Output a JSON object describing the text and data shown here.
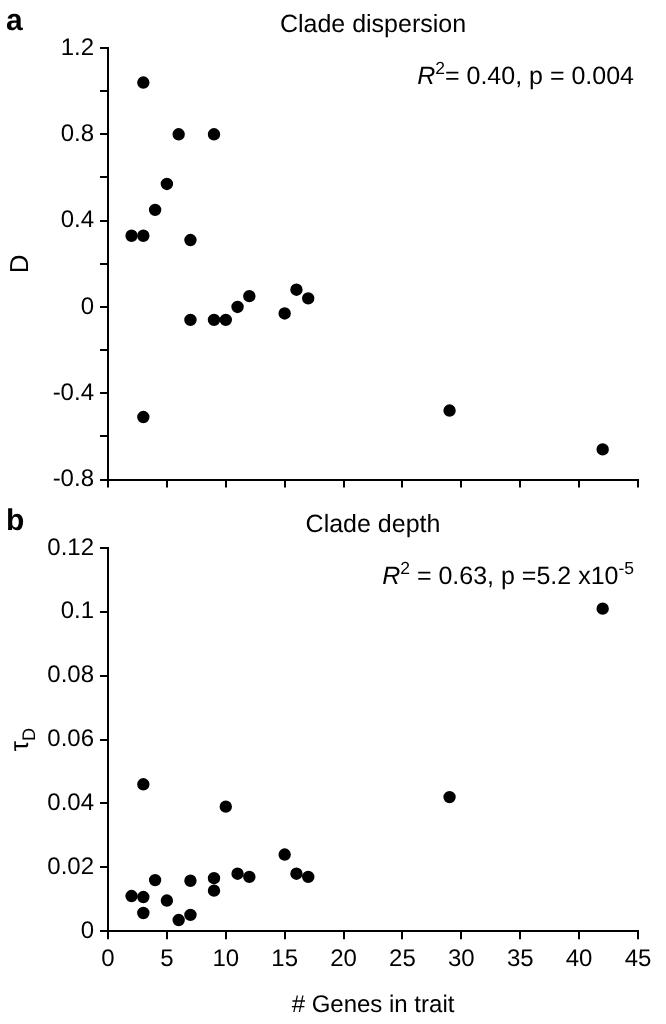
{
  "chart_data": [
    {
      "type": "scatter",
      "title": "Clade dispersion",
      "ylabel": "D",
      "annotations": [
        "a",
        "R$^{2}$= 0.40, p = 0.004"
      ],
      "x": [
        2,
        3,
        3,
        3,
        4,
        5,
        6,
        7,
        7,
        9,
        9,
        10,
        11,
        12,
        15,
        16,
        17,
        29,
        42
      ],
      "series": [
        {
          "color": "#000000",
          "values": [
            0.33,
            1.04,
            0.33,
            -0.51,
            0.45,
            0.57,
            0.8,
            0.31,
            -0.06,
            0.8,
            -0.06,
            -0.06,
            0.0,
            0.05,
            -0.03,
            0.08,
            0.04,
            -0.48,
            -0.66
          ]
        }
      ],
      "xlim": [
        0,
        45
      ],
      "xticks": [
        0,
        5,
        10,
        15,
        20,
        25,
        30,
        35,
        40,
        45
      ],
      "ylim": [
        -0.8,
        1.2
      ],
      "yticks": [
        -0.8,
        {
          "value": -0.6,
          "label": null
        },
        -0.4,
        {
          "value": -0.2,
          "label": null
        },
        0,
        {
          "value": 0.2,
          "label": null
        },
        0.4,
        {
          "value": 0.6,
          "label": null
        },
        0.8,
        {
          "value": 1.0,
          "label": null
        },
        1.2
      ],
      "tick_labels": "y",
      "marker": "circle",
      "grid": false,
      "legend": false
    },
    {
      "type": "scatter",
      "title": "Clade depth",
      "xlabel": "# Genes in trait",
      "ylabel": "τ$_{D}$",
      "annotations": [
        "b",
        "R$^{2}$ = 0.63, p =5.2 x10$^{-5}$"
      ],
      "x": [
        2,
        3,
        3,
        3,
        4,
        5,
        6,
        7,
        7,
        9,
        9,
        10,
        11,
        12,
        15,
        16,
        17,
        29,
        42
      ],
      "series": [
        {
          "color": "#000000",
          "values": [
            0.011,
            0.046,
            0.0107,
            0.0057,
            0.016,
            0.0096,
            0.0035,
            0.0158,
            0.0051,
            0.0166,
            0.0127,
            0.039,
            0.018,
            0.017,
            0.024,
            0.018,
            0.017,
            0.042,
            0.101
          ]
        }
      ],
      "xlim": [
        0,
        45
      ],
      "xticks": [
        0,
        5,
        10,
        15,
        20,
        25,
        30,
        35,
        40,
        45
      ],
      "ylim": [
        0,
        0.12
      ],
      "yticks": [
        0,
        0.02,
        0.04,
        0.06,
        0.08,
        0.1,
        0.12
      ],
      "marker": "circle",
      "grid": false,
      "legend": false
    }
  ]
}
